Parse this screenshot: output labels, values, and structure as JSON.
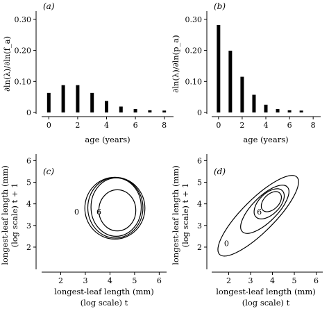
{
  "chart_data": [
    {
      "type": "bar",
      "panel_label": "(a)",
      "ylabel": "∂ln(λ)/∂ln(f_a)",
      "xlabel": "age (years)",
      "x": [
        0,
        1,
        2,
        3,
        4,
        5,
        6,
        7,
        8
      ],
      "values": [
        0.063,
        0.088,
        0.088,
        0.063,
        0.037,
        0.019,
        0.011,
        0.007,
        0.006
      ],
      "xlim": [
        -0.4,
        8.4
      ],
      "ylim": [
        0,
        0.34
      ],
      "xticks": [
        0,
        2,
        4,
        6,
        8
      ],
      "yticks": [
        0,
        0.1,
        0.2,
        0.3
      ],
      "ytick_labels": [
        "0",
        "0.10",
        "0.20",
        "0.30"
      ],
      "grid": false
    },
    {
      "type": "bar",
      "panel_label": "(b)",
      "ylabel": "∂ln(λ)/∂ln(p_a)",
      "xlabel": "age (years)",
      "x": [
        0,
        1,
        2,
        3,
        4,
        5,
        6,
        7
      ],
      "values": [
        0.282,
        0.199,
        0.115,
        0.057,
        0.025,
        0.011,
        0.007,
        0.006
      ],
      "xlim": [
        -0.4,
        8.4
      ],
      "ylim": [
        0,
        0.34
      ],
      "xticks": [
        0,
        2,
        4,
        6,
        8
      ],
      "yticks": [
        0,
        0.1,
        0.2,
        0.3
      ],
      "ytick_labels": [
        "0",
        "0.10",
        "0.20",
        "0.30"
      ],
      "grid": false
    },
    {
      "type": "contour",
      "panel_label": "(c)",
      "ylabel": [
        "longest-leaf length (mm)",
        "(log scale) t + 1"
      ],
      "xlabel": [
        "longest-leaf length (mm)",
        "(log scale) t"
      ],
      "xlim": [
        1,
        6.3
      ],
      "ylim": [
        1.1,
        6.3
      ],
      "xticks": [
        2,
        3,
        4,
        5,
        6
      ],
      "yticks": [
        2,
        3,
        4,
        5,
        6
      ],
      "contours": [
        {
          "cx": 4.2,
          "cy": 3.8,
          "rx": 1.22,
          "ry": 1.43,
          "rot_deg": 0
        },
        {
          "cx": 4.22,
          "cy": 3.82,
          "rx": 1.12,
          "ry": 1.4,
          "rot_deg": 0
        },
        {
          "cx": 4.25,
          "cy": 3.85,
          "rx": 1.02,
          "ry": 1.35,
          "rot_deg": 0
        },
        {
          "cx": 4.3,
          "cy": 3.7,
          "rx": 0.75,
          "ry": 0.95,
          "rot_deg": 0
        }
      ],
      "contour_labels": [
        {
          "text": "0",
          "x": 2.65,
          "y": 3.5
        },
        {
          "text": "6",
          "x": 3.55,
          "y": 3.5
        }
      ]
    },
    {
      "type": "contour",
      "panel_label": "(d)",
      "ylabel": [
        "longest-leaf length (mm)",
        "(log scale) t + 1"
      ],
      "xlabel": [
        "longest-leaf length (mm)",
        "(log scale) t"
      ],
      "xlim": [
        1,
        6.3
      ],
      "ylim": [
        1.1,
        6.3
      ],
      "xticks": [
        2,
        3,
        4,
        5,
        6
      ],
      "yticks": [
        2,
        3,
        4,
        5,
        6
      ],
      "contours": [
        {
          "cx": 3.35,
          "cy": 3.45,
          "rx": 2.5,
          "ry": 0.75,
          "rot_deg": 45
        },
        {
          "cx": 3.65,
          "cy": 3.75,
          "rx": 1.45,
          "ry": 0.58,
          "rot_deg": 45
        },
        {
          "cx": 3.85,
          "cy": 4.0,
          "rx": 0.85,
          "ry": 0.48,
          "rot_deg": 45
        },
        {
          "cx": 3.95,
          "cy": 4.1,
          "rx": 0.55,
          "ry": 0.35,
          "rot_deg": 45
        }
      ],
      "contour_labels": [
        {
          "text": "0",
          "x": 1.9,
          "y": 2.05
        },
        {
          "text": "6",
          "x": 3.4,
          "y": 3.5
        }
      ]
    }
  ]
}
